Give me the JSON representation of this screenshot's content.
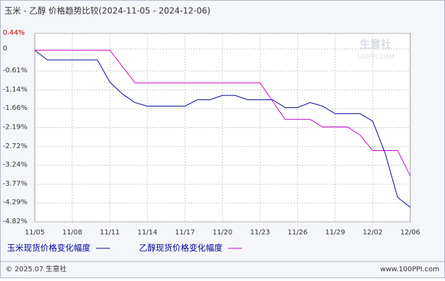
{
  "chart_data": {
    "type": "line",
    "title": "玉米 - 乙醇 价格趋势比较(2024-11-05 - 2024-12-06)",
    "categories": [
      "11/05",
      null,
      null,
      "11/08",
      null,
      null,
      "11/11",
      null,
      null,
      "11/14",
      null,
      null,
      "11/17",
      null,
      null,
      "11/20",
      null,
      null,
      "11/23",
      null,
      null,
      "11/26",
      null,
      null,
      "11/29",
      null,
      null,
      "12/02",
      null,
      null,
      "12/06"
    ],
    "series": [
      {
        "name": "玉米现货价格变化幅度",
        "color": "#000099",
        "values": [
          -0.03,
          -0.3,
          -0.3,
          -0.3,
          -0.3,
          -0.3,
          -0.92,
          -1.25,
          -1.49,
          -1.59,
          -1.59,
          -1.59,
          -1.59,
          -1.41,
          -1.41,
          -1.29,
          -1.29,
          -1.41,
          -1.41,
          -1.41,
          -1.63,
          -1.63,
          -1.49,
          -1.59,
          -1.8,
          -1.8,
          -1.8,
          -2.01,
          -2.91,
          -4.14,
          -4.41
        ]
      },
      {
        "name": "乙醇现货价格变化幅度",
        "color": "#cc00cc",
        "values": [
          -0.03,
          -0.03,
          -0.03,
          -0.03,
          -0.03,
          -0.03,
          -0.03,
          -0.48,
          -0.94,
          -0.94,
          -0.94,
          -0.94,
          -0.94,
          -0.94,
          -0.94,
          -0.94,
          -0.94,
          -0.94,
          -0.94,
          -1.45,
          -1.96,
          -1.96,
          -1.96,
          -2.17,
          -2.17,
          -2.17,
          -2.4,
          -2.83,
          -2.83,
          -2.83,
          -3.53
        ]
      }
    ],
    "ylim": [
      -4.82,
      0.44
    ],
    "yticks": [
      {
        "value": 0.44,
        "label": "0.44%"
      },
      0,
      {
        "value": -0.61,
        "label": "-0.61%"
      },
      {
        "value": -1.14,
        "label": "-1.14%"
      },
      {
        "value": -1.66,
        "label": "-1.66%"
      },
      {
        "value": -2.19,
        "label": "-2.19%"
      },
      {
        "value": -2.72,
        "label": "-2.72%"
      },
      {
        "value": -3.24,
        "label": "-3.24%"
      },
      {
        "value": -3.77,
        "label": "-3.77%"
      },
      {
        "value": -4.29,
        "label": "-4.29%"
      },
      {
        "value": -4.82,
        "label": "-4.82%"
      }
    ],
    "grid": true,
    "watermark": "生意社",
    "watermark_url": "100PPI.COM",
    "footer_left": "© 2025.07 生意社",
    "footer_right": "www.100PPI.com"
  }
}
